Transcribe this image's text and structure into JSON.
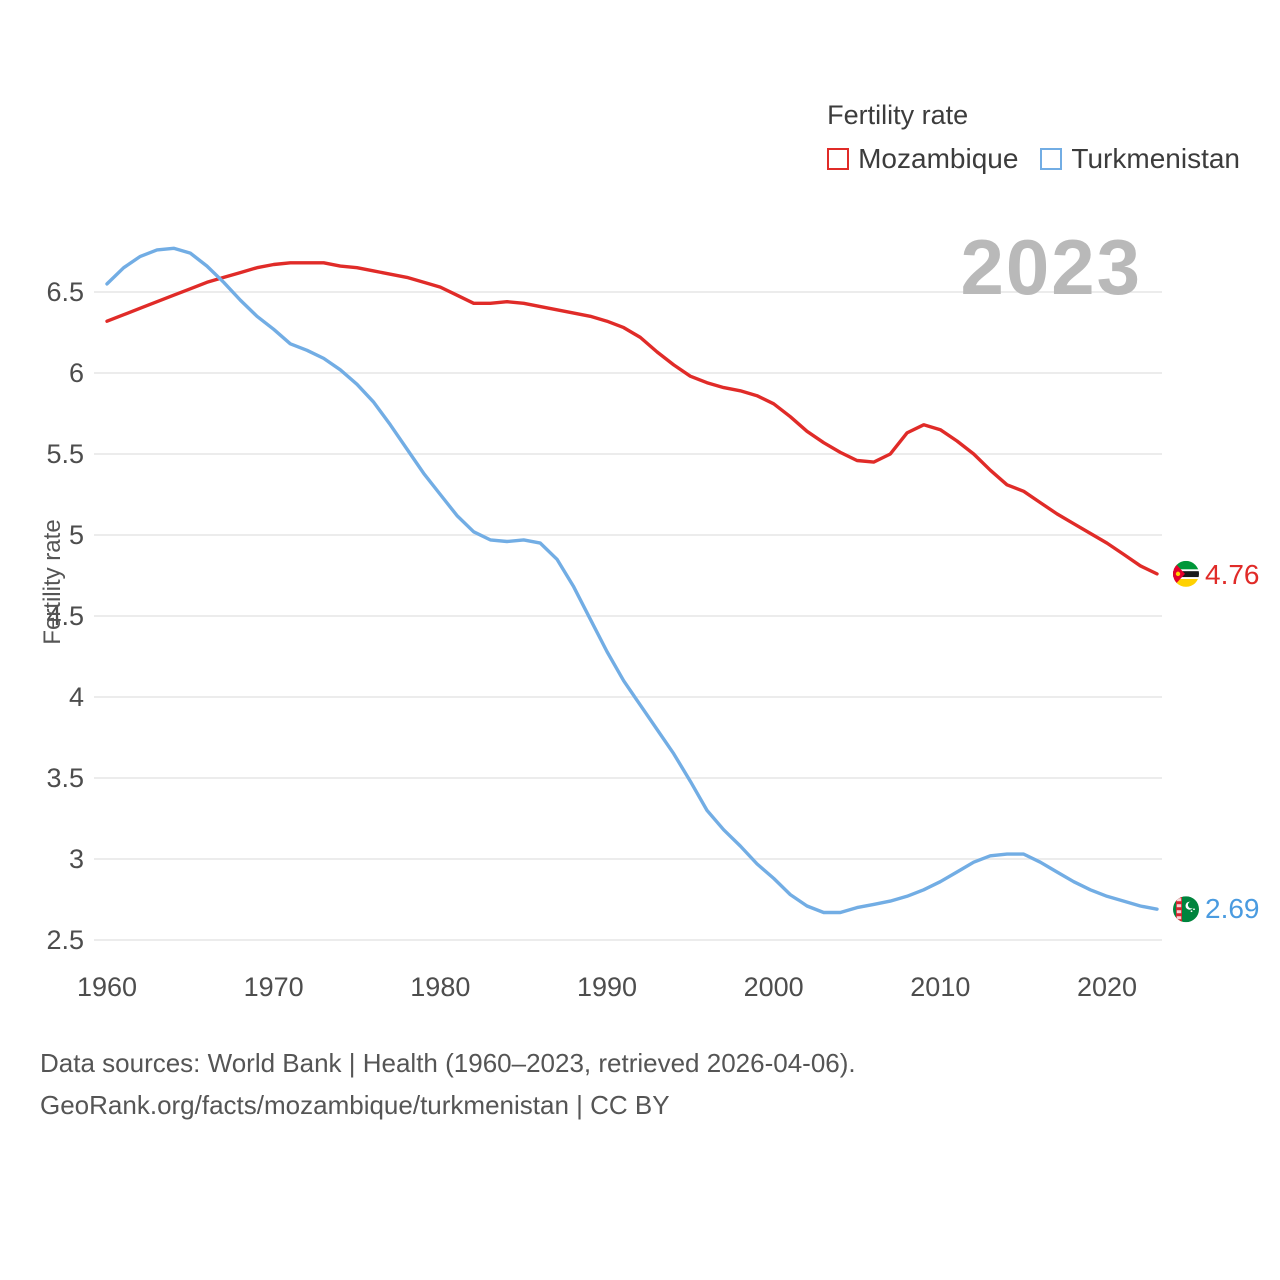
{
  "legend": {
    "title": "Fertility rate",
    "items": [
      {
        "label": "Mozambique",
        "color": "#e02b28"
      },
      {
        "label": "Turkmenistan",
        "color": "#72ade4"
      }
    ]
  },
  "watermark": {
    "year": "2023"
  },
  "y_axis": {
    "label": "Fertility rate",
    "ticks": [
      2.5,
      3,
      3.5,
      4,
      4.5,
      5,
      5.5,
      6,
      6.5
    ]
  },
  "x_axis": {
    "ticks": [
      1960,
      1970,
      1980,
      1990,
      2000,
      2010,
      2020
    ]
  },
  "end_labels": {
    "mozambique": {
      "value": "4.76"
    },
    "turkmenistan": {
      "value": "2.69"
    }
  },
  "footer": {
    "line1": "Data sources: World Bank | Health (1960–2023, retrieved 2026-04-06).",
    "line2": "GeoRank.org/facts/mozambique/turkmenistan | CC BY"
  },
  "chart_data": {
    "type": "line",
    "title": "Fertility rate",
    "xlabel": "",
    "ylabel": "Fertility rate",
    "xlim": [
      1960,
      2023
    ],
    "ylim": [
      2.4,
      6.9
    ],
    "grid": true,
    "legend_position": "top-right",
    "x": [
      1960,
      1961,
      1962,
      1963,
      1964,
      1965,
      1966,
      1967,
      1968,
      1969,
      1970,
      1971,
      1972,
      1973,
      1974,
      1975,
      1976,
      1977,
      1978,
      1979,
      1980,
      1981,
      1982,
      1983,
      1984,
      1985,
      1986,
      1987,
      1988,
      1989,
      1990,
      1991,
      1992,
      1993,
      1994,
      1995,
      1996,
      1997,
      1998,
      1999,
      2000,
      2001,
      2002,
      2003,
      2004,
      2005,
      2006,
      2007,
      2008,
      2009,
      2010,
      2011,
      2012,
      2013,
      2014,
      2015,
      2016,
      2017,
      2018,
      2019,
      2020,
      2021,
      2022,
      2023
    ],
    "series": [
      {
        "name": "Mozambique",
        "color": "#e02b28",
        "final_value": 4.76,
        "values": [
          6.32,
          6.36,
          6.4,
          6.44,
          6.48,
          6.52,
          6.56,
          6.59,
          6.62,
          6.65,
          6.67,
          6.68,
          6.68,
          6.68,
          6.66,
          6.65,
          6.63,
          6.61,
          6.59,
          6.56,
          6.53,
          6.48,
          6.43,
          6.43,
          6.44,
          6.43,
          6.41,
          6.39,
          6.37,
          6.35,
          6.32,
          6.28,
          6.22,
          6.13,
          6.05,
          5.98,
          5.94,
          5.91,
          5.89,
          5.86,
          5.81,
          5.73,
          5.64,
          5.57,
          5.51,
          5.46,
          5.45,
          5.5,
          5.63,
          5.68,
          5.65,
          5.58,
          5.5,
          5.4,
          5.31,
          5.27,
          5.2,
          5.13,
          5.07,
          5.01,
          4.95,
          4.88,
          4.81,
          4.76
        ]
      },
      {
        "name": "Turkmenistan",
        "color": "#72ade4",
        "final_value": 2.69,
        "values": [
          6.55,
          6.65,
          6.72,
          6.76,
          6.77,
          6.74,
          6.66,
          6.56,
          6.45,
          6.35,
          6.27,
          6.18,
          6.14,
          6.09,
          6.02,
          5.93,
          5.82,
          5.68,
          5.53,
          5.38,
          5.25,
          5.12,
          5.02,
          4.97,
          4.96,
          4.97,
          4.95,
          4.85,
          4.68,
          4.48,
          4.28,
          4.1,
          3.95,
          3.8,
          3.65,
          3.48,
          3.3,
          3.18,
          3.08,
          2.97,
          2.88,
          2.78,
          2.71,
          2.67,
          2.67,
          2.7,
          2.72,
          2.74,
          2.77,
          2.81,
          2.86,
          2.92,
          2.98,
          3.02,
          3.03,
          3.03,
          2.98,
          2.92,
          2.86,
          2.81,
          2.77,
          2.74,
          2.71,
          2.69
        ]
      }
    ]
  }
}
